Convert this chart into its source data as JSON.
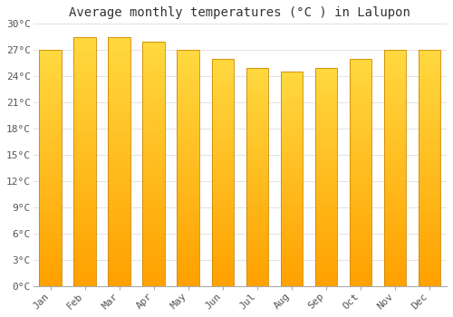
{
  "title": "Average monthly temperatures (°C ) in Lalupon",
  "months": [
    "Jan",
    "Feb",
    "Mar",
    "Apr",
    "May",
    "Jun",
    "Jul",
    "Aug",
    "Sep",
    "Oct",
    "Nov",
    "Dec"
  ],
  "values": [
    27.0,
    28.5,
    28.5,
    28.0,
    27.0,
    26.0,
    25.0,
    24.5,
    25.0,
    26.0,
    27.0,
    27.0
  ],
  "bar_color_top": "#FFD040",
  "bar_color_bottom": "#FFA000",
  "bar_edge_color": "#CC8800",
  "ylim": [
    0,
    30
  ],
  "ytick_step": 3,
  "background_color": "#FFFFFF",
  "grid_color": "#DDDDDD",
  "title_fontsize": 10,
  "tick_fontsize": 8,
  "bar_width": 0.65
}
